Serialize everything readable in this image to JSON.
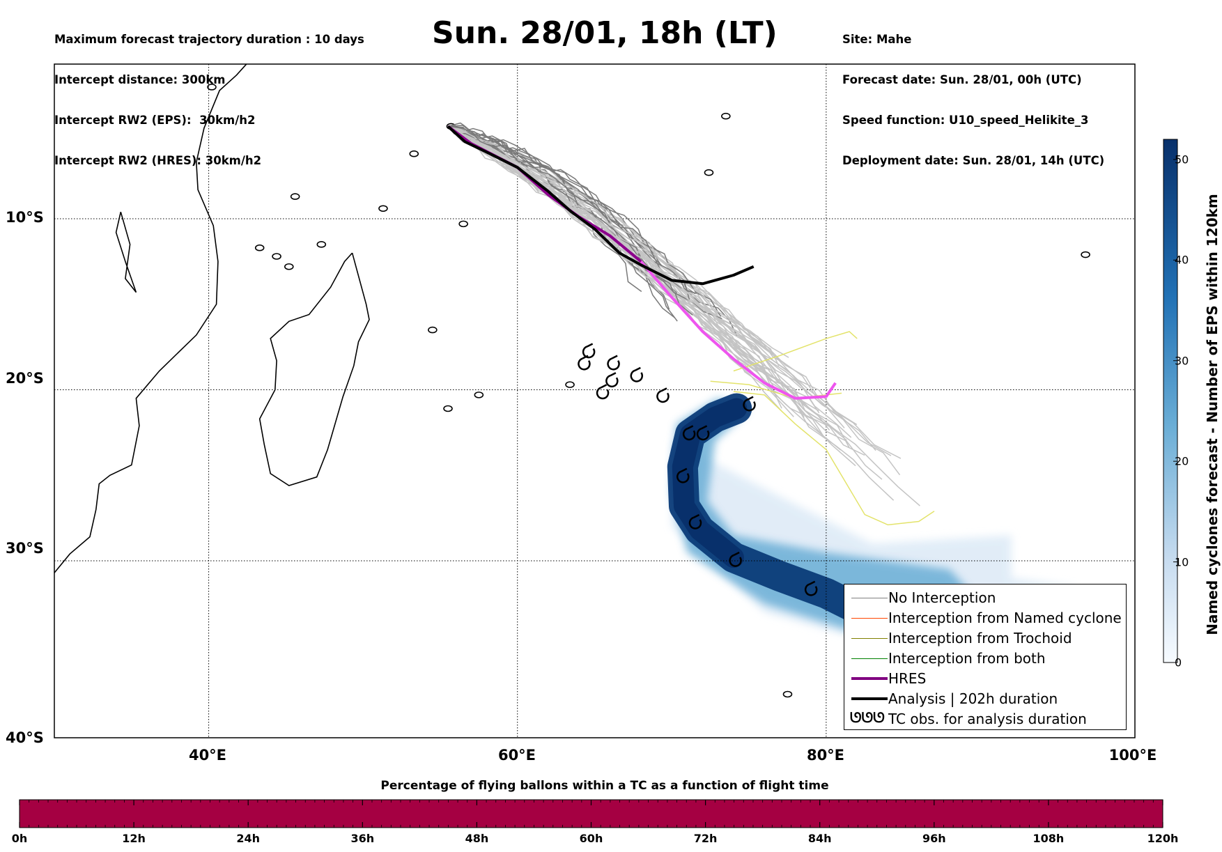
{
  "header": {
    "left": [
      "Maximum forecast trajectory duration : 10 days",
      "Intercept distance: 300km",
      "Intercept RW2 (EPS):  30km/h2",
      "Intercept RW2 (HRES): 30km/h2"
    ],
    "right": [
      "Site: Mahe",
      "Forecast date: Sun. 28/01, 00h (UTC)",
      "Speed function: U10_speed_Helikite_3",
      "Deployment date: Sun. 28/01, 14h (UTC)"
    ],
    "title": "Sun. 28/01, 18h (LT)"
  },
  "map": {
    "lat_labels": [
      "10°S",
      "20°S",
      "30°S",
      "40°S"
    ],
    "lon_labels": [
      "40°E",
      "60°E",
      "80°E",
      "100°E"
    ],
    "extent": {
      "lon_min": 30,
      "lon_max": 100,
      "lat_min": -40,
      "lat_max": -0.3
    },
    "site": {
      "name": "Mahe",
      "lon": 55.5,
      "lat": -4.6
    },
    "analysis_track": [
      [
        55.5,
        -4.6
      ],
      [
        56.6,
        -5.5
      ],
      [
        58,
        -6.1
      ],
      [
        60,
        -7.0
      ],
      [
        62,
        -8.4
      ],
      [
        63.5,
        -9.6
      ],
      [
        65,
        -10.6
      ],
      [
        66.6,
        -12.0
      ],
      [
        68,
        -12.7
      ],
      [
        70,
        -13.6
      ],
      [
        72,
        -13.8
      ],
      [
        74,
        -13.3
      ],
      [
        75.3,
        -12.8
      ]
    ],
    "hres_track": [
      [
        55.5,
        -4.6
      ],
      [
        57,
        -5.6
      ],
      [
        60,
        -7.0
      ],
      [
        62,
        -8.6
      ],
      [
        64,
        -9.9
      ],
      [
        66,
        -11.0
      ],
      [
        68,
        -12.5
      ],
      [
        70,
        -14.6
      ],
      [
        72,
        -16.6
      ],
      [
        74,
        -18.2
      ],
      [
        76,
        -19.6
      ],
      [
        78,
        -20.5
      ],
      [
        80,
        -20.4
      ],
      [
        80.6,
        -19.6
      ]
    ],
    "tc_obs": [
      [
        64.6,
        -17.8
      ],
      [
        64.3,
        -18.5
      ],
      [
        66.2,
        -18.5
      ],
      [
        66.1,
        -19.5
      ],
      [
        65.5,
        -20.2
      ],
      [
        67.7,
        -19.2
      ],
      [
        69.4,
        -20.4
      ],
      [
        75,
        -20.9
      ],
      [
        71.1,
        -22.6
      ],
      [
        72,
        -22.6
      ],
      [
        70.7,
        -25.1
      ],
      [
        71.5,
        -27.8
      ],
      [
        74.1,
        -30.0
      ],
      [
        79,
        -31.7
      ]
    ],
    "eps_cyclone_density": {
      "max_value": 52,
      "core_path": [
        [
          74.2,
          -21.1
        ],
        [
          72.8,
          -21.6
        ],
        [
          71.2,
          -22.6
        ],
        [
          70.7,
          -24.5
        ],
        [
          70.8,
          -26.8
        ],
        [
          71.8,
          -28.2
        ],
        [
          74,
          -29.8
        ],
        [
          77,
          -30.9
        ],
        [
          80,
          -31.9
        ],
        [
          82,
          -32.8
        ]
      ]
    },
    "ens_tracks_count": 51
  },
  "legend": {
    "items": [
      {
        "label": "No Interception",
        "color": "#808080",
        "width": 1
      },
      {
        "label": "Interception from Named cyclone",
        "color": "#ff4500",
        "width": 1
      },
      {
        "label": "Interception from Trochoid",
        "color": "#808000",
        "width": 1
      },
      {
        "label": "Interception from both",
        "color": "#008000",
        "width": 1
      },
      {
        "label": "HRES",
        "color": "#800080",
        "width": 4
      },
      {
        "label": "Analysis | 202h duration",
        "color": "#000000",
        "width": 4
      },
      {
        "label": "TC obs. for analysis duration",
        "symbol": "ᘎᘎᘎ"
      }
    ]
  },
  "colorbar_vertical": {
    "title": "Named cyclones forecast - Number of EPS within 120km",
    "ticks": [
      "0",
      "10",
      "20",
      "30",
      "40",
      "50"
    ],
    "min": 0,
    "max": 52,
    "color_low": "#deebf7",
    "color_high": "#08306b"
  },
  "colorbar_horizontal": {
    "title": "Percentage of flying ballons within a TC as a function of flight time",
    "ticks": [
      "0h",
      "12h",
      "24h",
      "36h",
      "48h",
      "60h",
      "72h",
      "84h",
      "96h",
      "108h",
      "120h"
    ],
    "fill_color": "#a50042"
  }
}
